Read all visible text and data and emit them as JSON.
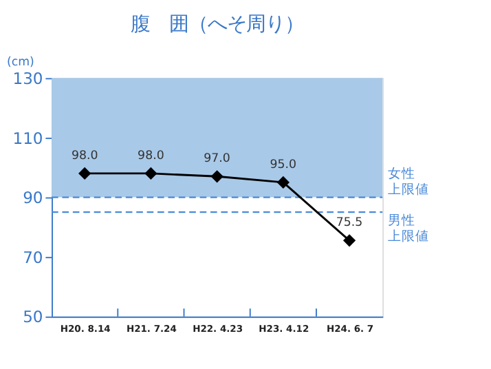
{
  "chart_data": {
    "type": "line",
    "title": "腹　囲（へそ周り）",
    "ylabel": "(cm)",
    "categories": [
      "H20. 8.14",
      "H21. 7.24",
      "H22. 4.23",
      "H23. 4.12",
      "H24. 6. 7"
    ],
    "series": [
      {
        "color": "#000000",
        "values": [
          98.0,
          98.0,
          97.0,
          95.0,
          75.5
        ],
        "value_labels": [
          "98.0",
          "98.0",
          "97.0",
          "95.0",
          "75.5"
        ]
      }
    ],
    "ylim": [
      50,
      130
    ],
    "yticks": [
      50,
      70,
      90,
      110,
      130
    ],
    "bands": [
      {
        "axis": "y",
        "from": 90,
        "to": 130,
        "color": "#a9c9e8"
      }
    ],
    "ref_lines": [
      {
        "axis": "y",
        "value": 90,
        "label": [
          "女性",
          "上限値"
        ],
        "color": "#4a8ad8",
        "line_style": "dashed"
      },
      {
        "axis": "y",
        "value": 85,
        "label": [
          "男性",
          "上限値"
        ],
        "color": "#4a8ad8",
        "line_style": "dashed"
      }
    ],
    "marker": "diamond",
    "line_style": "solid",
    "grid": false
  }
}
